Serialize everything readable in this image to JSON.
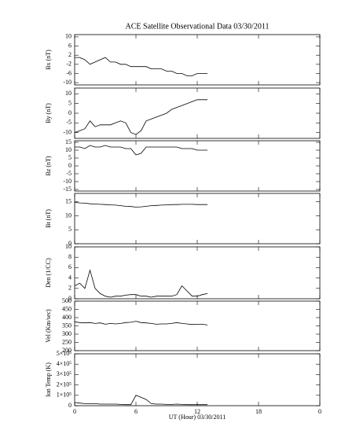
{
  "chart_data": [
    {
      "type": "line",
      "title": "ACE Satellite Observational Data  03/30/2011",
      "ylabel": "Bx (nT)",
      "xlim": [
        0,
        24
      ],
      "xticks": [
        0,
        6,
        12,
        18,
        24
      ],
      "ylim": [
        -11,
        11
      ],
      "yticks": [
        10,
        6,
        2,
        -2,
        -6,
        -10
      ],
      "x": [
        0,
        0.5,
        1,
        1.5,
        2,
        2.5,
        3,
        3.5,
        4,
        4.5,
        5,
        5.5,
        6,
        6.5,
        7,
        7.5,
        8,
        8.5,
        9,
        9.5,
        10,
        10.5,
        11,
        11.5,
        12,
        12.5,
        13
      ],
      "values": [
        1,
        1,
        0,
        -2,
        -1,
        0,
        1,
        -1,
        -1,
        -2,
        -2,
        -3,
        -3,
        -3,
        -3,
        -4,
        -4,
        -4,
        -5,
        -5,
        -6,
        -6,
        -7,
        -7,
        -6,
        -6,
        -6
      ]
    },
    {
      "type": "line",
      "ylabel": "By (nT)",
      "xlim": [
        0,
        24
      ],
      "xticks": [
        0,
        6,
        12,
        18,
        24
      ],
      "ylim": [
        -13,
        13
      ],
      "yticks": [
        10,
        5,
        0,
        -5,
        -10
      ],
      "x": [
        0,
        0.5,
        1,
        1.5,
        2,
        2.5,
        3,
        3.5,
        4,
        4.5,
        5,
        5.5,
        6,
        6.5,
        7,
        7.5,
        8,
        8.5,
        9,
        9.5,
        10,
        10.5,
        11,
        11.5,
        12,
        12.5,
        13
      ],
      "values": [
        -10,
        -9,
        -8,
        -4,
        -7,
        -6,
        -6,
        -6,
        -5,
        -4,
        -5,
        -10,
        -11,
        -9,
        -4,
        -3,
        -2,
        -1,
        0,
        2,
        3,
        4,
        5,
        6,
        7,
        7,
        7
      ]
    },
    {
      "type": "line",
      "ylabel": "Bz (nT)",
      "xlim": [
        0,
        24
      ],
      "xticks": [
        0,
        6,
        12,
        18,
        24
      ],
      "ylim": [
        -16,
        16
      ],
      "yticks": [
        15,
        10,
        5,
        0,
        -5,
        -10,
        -15
      ],
      "x": [
        0,
        0.5,
        1,
        1.5,
        2,
        2.5,
        3,
        3.5,
        4,
        4.5,
        5,
        5.5,
        6,
        6.5,
        7,
        7.5,
        8,
        8.5,
        9,
        9.5,
        10,
        10.5,
        11,
        11.5,
        12,
        12.5,
        13
      ],
      "values": [
        12,
        12,
        11,
        13,
        12,
        12,
        13,
        12,
        12,
        12,
        11,
        11,
        7,
        8,
        12,
        12,
        12,
        12,
        12,
        12,
        12,
        11,
        11,
        11,
        10,
        10,
        10
      ]
    },
    {
      "type": "line",
      "ylabel": "Bt (nT)",
      "xlim": [
        0,
        24
      ],
      "xticks": [
        0,
        6,
        12,
        18,
        24
      ],
      "ylim": [
        0,
        18
      ],
      "yticks": [
        15,
        10,
        5,
        0
      ],
      "x": [
        0,
        0.5,
        1,
        1.5,
        2,
        2.5,
        3,
        3.5,
        4,
        4.5,
        5,
        5.5,
        6,
        6.5,
        7,
        7.5,
        8,
        8.5,
        9,
        9.5,
        10,
        10.5,
        11,
        11.5,
        12,
        12.5,
        13
      ],
      "values": [
        14.8,
        14.6,
        14.5,
        14.3,
        14.2,
        14.1,
        14,
        13.9,
        13.8,
        13.6,
        13.4,
        13.3,
        13.1,
        13.2,
        13.4,
        13.6,
        13.7,
        13.8,
        13.9,
        14,
        14,
        14.1,
        14.1,
        14.1,
        14,
        14,
        14
      ]
    },
    {
      "type": "line",
      "ylabel": "Den (1/CC)",
      "xlim": [
        0,
        24
      ],
      "xticks": [
        0,
        6,
        12,
        18,
        24
      ],
      "ylim": [
        0,
        10
      ],
      "yticks": [
        10,
        8,
        6,
        4,
        2,
        0
      ],
      "x": [
        0,
        0.5,
        1,
        1.5,
        2,
        2.5,
        3,
        3.5,
        4,
        4.5,
        5,
        5.5,
        6,
        6.5,
        7,
        7.5,
        8,
        8.5,
        9,
        9.5,
        10,
        10.5,
        11,
        11.5,
        12,
        12.5,
        13
      ],
      "values": [
        2.5,
        3,
        2,
        5.5,
        2,
        1,
        0.5,
        0.3,
        0.5,
        0.5,
        0.7,
        0.8,
        0.8,
        0.5,
        0.5,
        0.3,
        0.5,
        0.5,
        0.5,
        0.5,
        0.8,
        2.5,
        1.5,
        0.5,
        0.5,
        0.8,
        1
      ]
    },
    {
      "type": "line",
      "ylabel": "Vel (Km/sec)",
      "xlim": [
        0,
        24
      ],
      "xticks": [
        0,
        6,
        12,
        18,
        24
      ],
      "ylim": [
        200,
        500
      ],
      "yticks": [
        500,
        450,
        400,
        350,
        300,
        250,
        200
      ],
      "x": [
        0,
        0.5,
        1,
        1.5,
        2,
        2.5,
        3,
        3.5,
        4,
        4.5,
        5,
        5.5,
        6,
        6.5,
        7,
        7.5,
        8,
        8.5,
        9,
        9.5,
        10,
        10.5,
        11,
        11.5,
        12,
        12.5,
        13
      ],
      "values": [
        375,
        370,
        368,
        370,
        365,
        368,
        360,
        365,
        362,
        365,
        370,
        372,
        378,
        370,
        368,
        365,
        360,
        362,
        362,
        365,
        370,
        365,
        362,
        358,
        360,
        360,
        355
      ]
    },
    {
      "type": "line",
      "ylabel": "Ion Temp (K)",
      "xlabel": "UT (Hour)  03/30/2011",
      "xlim": [
        0,
        24
      ],
      "xticks": [
        0,
        6,
        12,
        18,
        {
          "value": 24,
          "label": "0"
        }
      ],
      "ylim": [
        0,
        500000
      ],
      "yticks": [
        {
          "value": 500000,
          "label": "5×10⁵"
        },
        {
          "value": 400000,
          "label": "4×10⁵"
        },
        {
          "value": 300000,
          "label": "3×10⁵"
        },
        {
          "value": 200000,
          "label": "2×10⁵"
        },
        {
          "value": 100000,
          "label": "1×10⁵"
        },
        0
      ],
      "x": [
        0,
        0.5,
        1,
        1.5,
        2,
        2.5,
        3,
        3.5,
        4,
        4.5,
        5,
        5.5,
        6,
        6.5,
        7,
        7.5,
        8,
        8.5,
        9,
        9.5,
        10,
        10.5,
        11,
        11.5,
        12,
        12.5,
        13
      ],
      "values": [
        30000,
        25000,
        20000,
        20000,
        20000,
        15000,
        15000,
        15000,
        15000,
        12000,
        10000,
        10000,
        100000,
        80000,
        60000,
        20000,
        15000,
        15000,
        12000,
        12000,
        15000,
        12000,
        10000,
        10000,
        10000,
        10000,
        10000
      ]
    }
  ]
}
